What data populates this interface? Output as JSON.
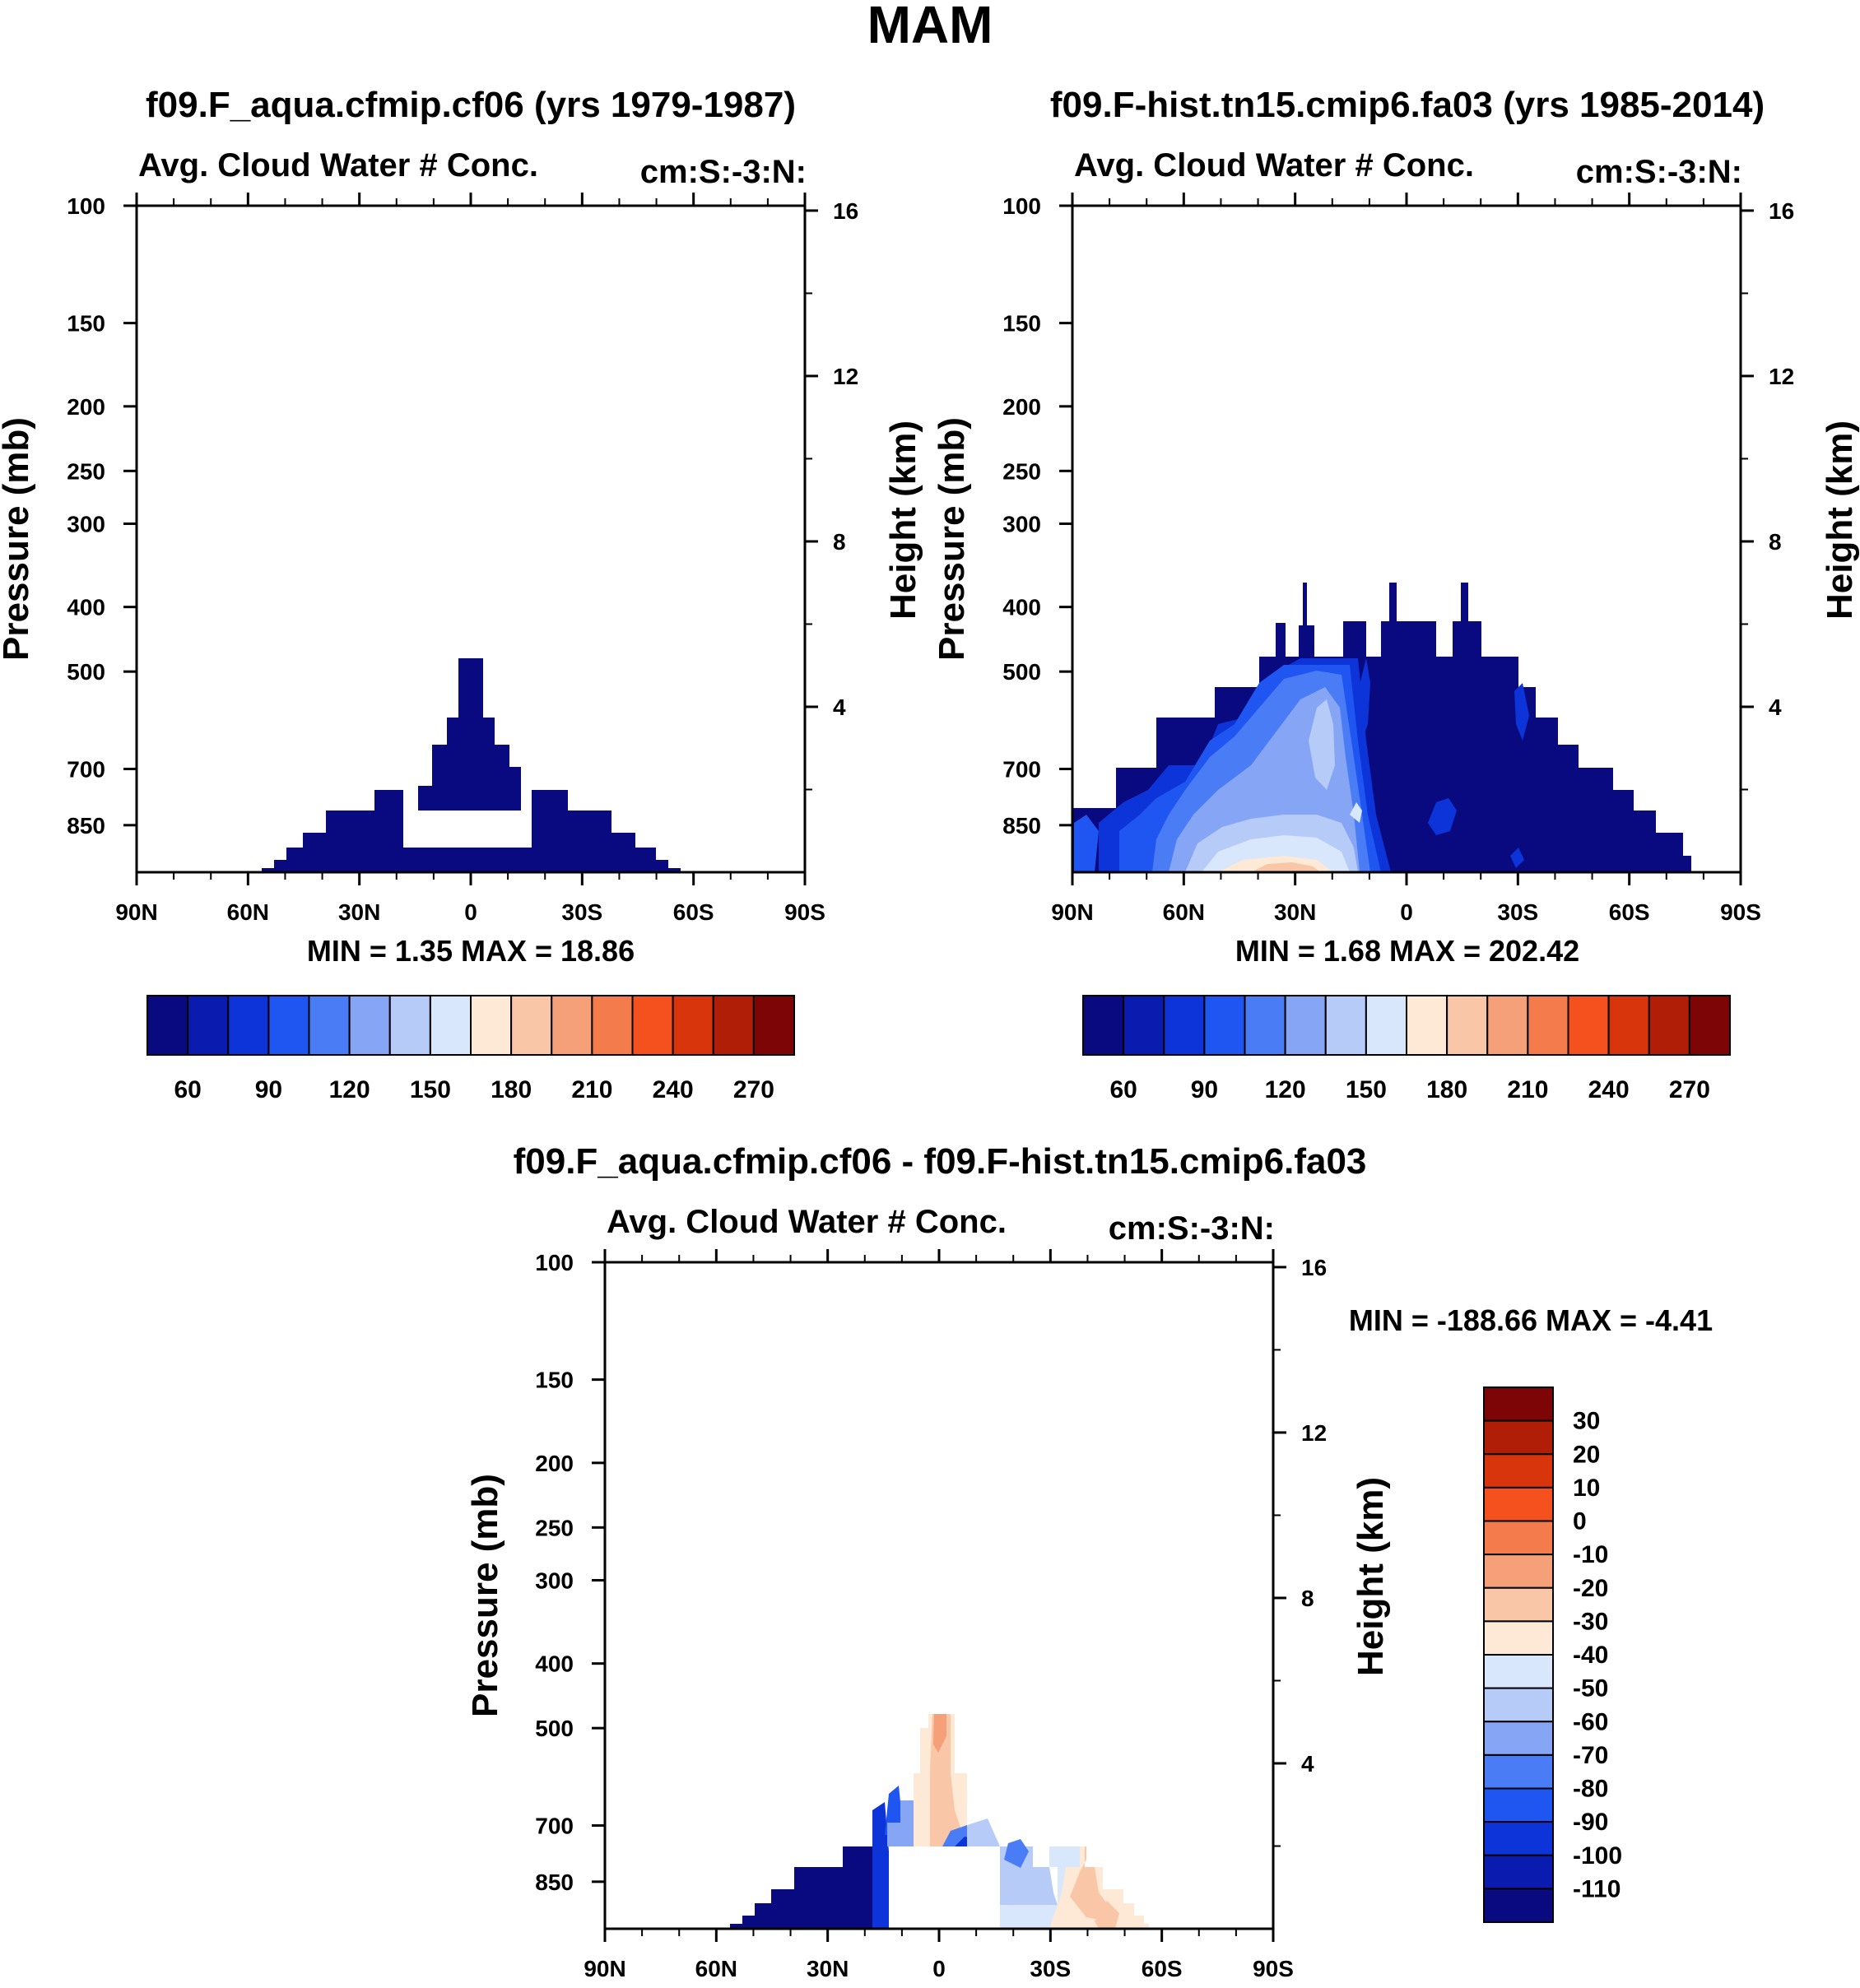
{
  "page_title": "MAM",
  "chart_data": [
    {
      "id": "p1",
      "type": "contour",
      "title": "f09.F_aqua.cfmip.cf06 (yrs 1979-1987)",
      "subtitle_left": "Avg. Cloud Water # Conc.",
      "subtitle_right": "cm:S:-3:N:",
      "ylabel": "Pressure (mb)",
      "ylabel_right": "Height (km)",
      "x_ticks": [
        "90N",
        "60N",
        "30N",
        "0",
        "30S",
        "60S",
        "90S"
      ],
      "x_range": [
        90,
        -90
      ],
      "y_ticks": [
        "100",
        "150",
        "200",
        "250",
        "300",
        "400",
        "500",
        "700",
        "850"
      ],
      "y_range_mb": [
        100,
        1000
      ],
      "height_ticks": [
        "16",
        "12",
        "8",
        "4"
      ],
      "min_max": "MIN =   1.35  MAX =  18.86",
      "colorbar": {
        "colors": [
          "#0a0a80",
          "#0a1cb0",
          "#0c34d8",
          "#1f55f0",
          "#4a7cf5",
          "#86a6f5",
          "#b6cbf8",
          "#d8e7fb",
          "#fde9d5",
          "#f9c7a8",
          "#f6a07a",
          "#f47c4c",
          "#f4511e",
          "#d9350c",
          "#b01e08",
          "#7e0505"
        ],
        "labels": [
          "60",
          "90",
          "120",
          "150",
          "180",
          "210",
          "240",
          "270"
        ]
      },
      "extent": "deep blue dome over 55N to 55S, peak near 460 mb at equator, gap 700-850 mb between 20N and 15S"
    },
    {
      "id": "p2",
      "type": "contour",
      "title": "f09.F-hist.tn15.cmip6.fa03 (yrs 1985-2014)",
      "subtitle_left": "Avg. Cloud Water # Conc.",
      "subtitle_right": "cm:S:-3:N:",
      "ylabel": "Pressure (mb)",
      "ylabel_right": "Height (km)",
      "x_ticks": [
        "90N",
        "60N",
        "30N",
        "0",
        "30S",
        "60S",
        "90S"
      ],
      "x_range": [
        90,
        -90
      ],
      "y_ticks": [
        "100",
        "150",
        "200",
        "250",
        "300",
        "400",
        "500",
        "700",
        "850"
      ],
      "y_range_mb": [
        100,
        1000
      ],
      "height_ticks": [
        "16",
        "12",
        "8",
        "4"
      ],
      "min_max": "MIN =   1.68  MAX = 202.42",
      "colorbar": {
        "colors": [
          "#0a0a80",
          "#0a1cb0",
          "#0c34d8",
          "#1f55f0",
          "#4a7cf5",
          "#86a6f5",
          "#b6cbf8",
          "#d8e7fb",
          "#fde9d5",
          "#f9c7a8",
          "#f6a07a",
          "#f47c4c",
          "#f4511e",
          "#d9350c",
          "#b01e08",
          "#7e0505"
        ],
        "labels": [
          "60",
          "90",
          "120",
          "150",
          "180",
          "210",
          "240",
          "270"
        ]
      },
      "extent": "wide dome 90N to 77S, top near 330 mb; lighter blue values in NH subtropics, orange near surface around 30N"
    },
    {
      "id": "p3",
      "type": "contour",
      "title": "f09.F_aqua.cfmip.cf06 - f09.F-hist.tn15.cmip6.fa03",
      "subtitle_left": "Avg. Cloud Water # Conc.",
      "subtitle_right": "cm:S:-3:N:",
      "ylabel": "Pressure (mb)",
      "ylabel_right": "Height (km)",
      "x_ticks": [
        "90N",
        "60N",
        "30N",
        "0",
        "30S",
        "60S",
        "90S"
      ],
      "x_range": [
        90,
        -90
      ],
      "y_ticks": [
        "100",
        "150",
        "200",
        "250",
        "300",
        "400",
        "500",
        "700",
        "850"
      ],
      "y_range_mb": [
        100,
        1000
      ],
      "height_ticks": [
        "16",
        "12",
        "8",
        "4"
      ],
      "min_max": "MIN = -188.66  MAX =  -4.41",
      "colorbar": {
        "colors": [
          "#0a0a80",
          "#0a1cb0",
          "#0c34d8",
          "#1f55f0",
          "#4a7cf5",
          "#86a6f5",
          "#b6cbf8",
          "#d8e7fb",
          "#fde9d5",
          "#f9c7a8",
          "#f6a07a",
          "#f47c4c",
          "#f4511e",
          "#d9350c",
          "#b01e08",
          "#7e0505"
        ],
        "labels": [
          "-110",
          "-100",
          "-90",
          "-80",
          "-70",
          "-60",
          "-50",
          "-40",
          "-30",
          "-20",
          "-10",
          "0",
          "10",
          "20",
          "30"
        ]
      },
      "extent": "difference dome 55N to 55S, dark blue in NH, pale orange aloft at equator and in SH subtropics"
    }
  ]
}
